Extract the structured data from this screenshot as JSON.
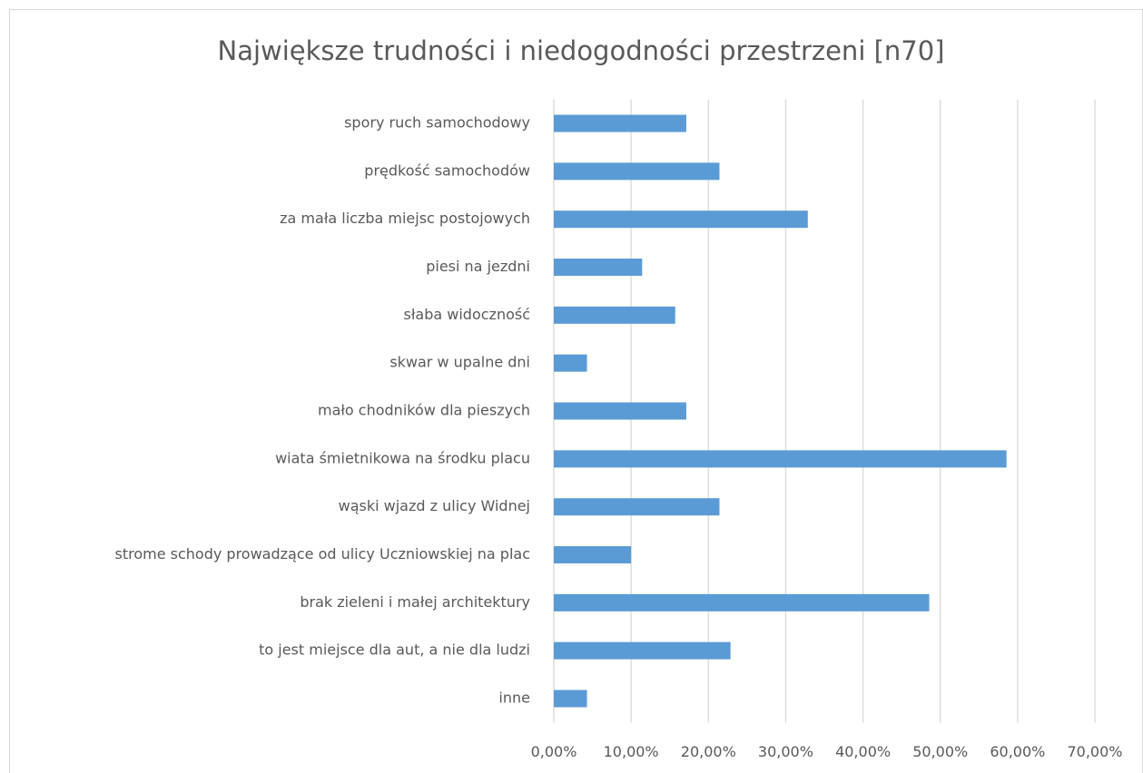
{
  "chart_data": {
    "type": "bar",
    "orientation": "horizontal",
    "title": "Największe trudności i niedogodności przestrzeni [n70]",
    "categories": [
      "spory ruch samochodowy",
      "prędkość samochodów",
      "za mała liczba miejsc postojowych",
      "piesi na jezdni",
      "słaba widoczność",
      "skwar w upalne dni",
      "mało chodników dla pieszych",
      "wiata śmietnikowa na środku placu",
      "wąski wjazd z ulicy Widnej",
      "strome schody prowadzące od ulicy Uczniowskiej na plac",
      "brak zieleni i małej architektury",
      "to jest miejsce dla aut, a nie dla ludzi",
      "inne"
    ],
    "values": [
      17.14,
      21.43,
      32.86,
      11.43,
      15.71,
      4.29,
      17.14,
      58.57,
      21.43,
      10.0,
      48.57,
      22.86,
      4.29
    ],
    "color": "#5b9bd5",
    "xlim": [
      0,
      70
    ],
    "xticks": [
      {
        "value": 0,
        "label": "0,00%"
      },
      {
        "value": 10,
        "label": "10,00%"
      },
      {
        "value": 20,
        "label": "20,00%"
      },
      {
        "value": 30,
        "label": "30,00%"
      },
      {
        "value": 40,
        "label": "40,00%"
      },
      {
        "value": 50,
        "label": "50,00%"
      },
      {
        "value": 60,
        "label": "60,00%"
      },
      {
        "value": 70,
        "label": "70,00%"
      }
    ],
    "grid": true
  }
}
